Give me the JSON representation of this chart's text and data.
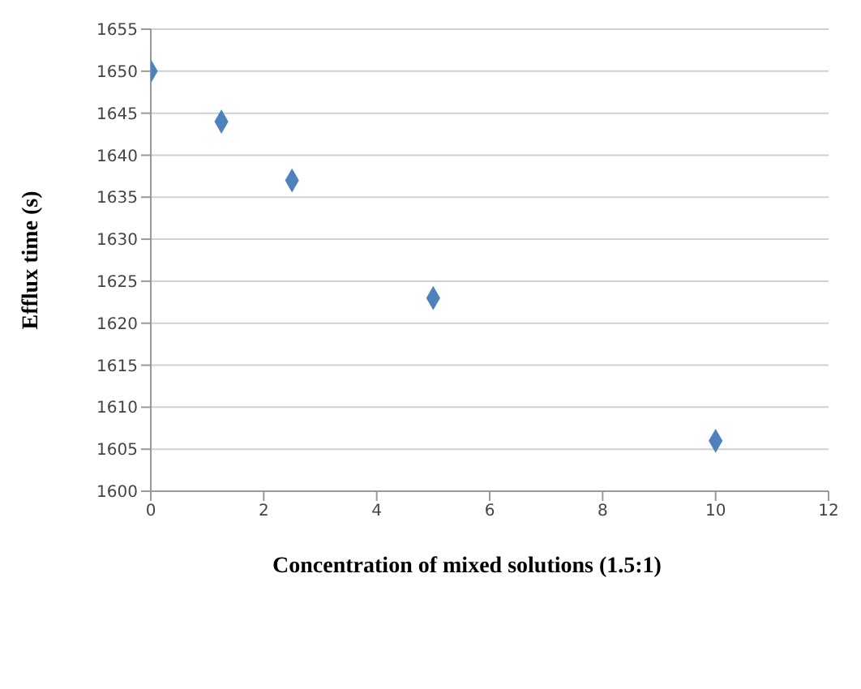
{
  "chart_data": {
    "type": "scatter",
    "xlabel": "Concentration of mixed solutions (1.5:1)",
    "ylabel": "Efflux time (s)",
    "x": [
      0,
      1.25,
      2.5,
      5,
      10
    ],
    "series": [
      {
        "color": "#4f81bd",
        "values": [
          1650,
          1644,
          1637,
          1623,
          1606
        ]
      }
    ],
    "xlim": [
      0,
      12
    ],
    "xticks": [
      0,
      2,
      4,
      6,
      8,
      10,
      12
    ],
    "ylim": [
      1600,
      1655
    ],
    "yticks": [
      1600,
      1605,
      1610,
      1615,
      1620,
      1625,
      1630,
      1635,
      1640,
      1645,
      1650,
      1655
    ],
    "grid": "y",
    "marker": "diamond",
    "legend": false
  }
}
